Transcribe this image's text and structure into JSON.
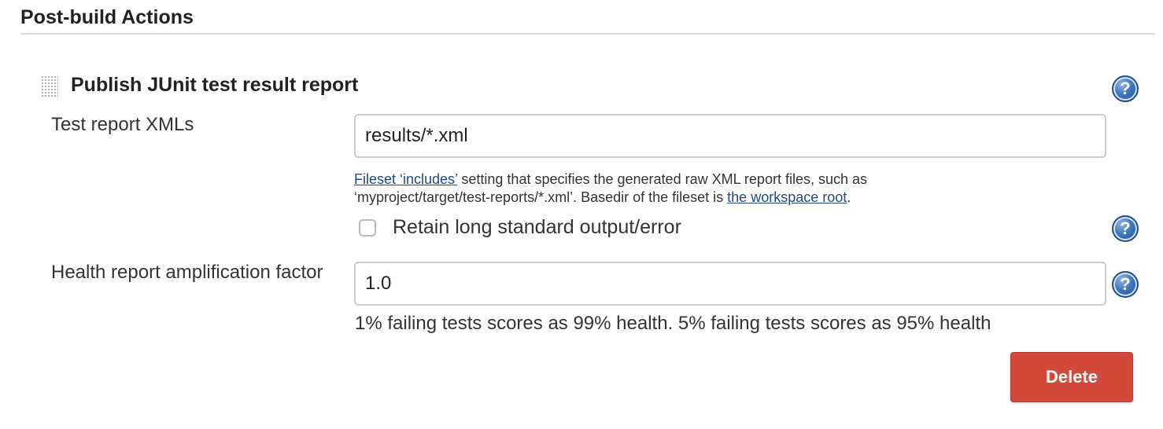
{
  "section": {
    "title": "Post-build Actions"
  },
  "step": {
    "title": "Publish JUnit test result report",
    "drag_icon": "drag-handle-icon",
    "help_icon": "help-icon"
  },
  "test_report": {
    "label": "Test report XMLs",
    "value": "results/*.xml",
    "description": {
      "link1": "Fileset ‘includes’",
      "text1": " setting that specifies the generated raw XML report files, such as",
      "text2": "‘myproject/target/test-reports/*.xml’. Basedir of the fileset is ",
      "link2": "the workspace root",
      "text3": "."
    }
  },
  "retain_output": {
    "label": "Retain long standard output/error",
    "checked": false
  },
  "health": {
    "label": "Health report amplification factor",
    "value": "1.0",
    "description": "1% failing tests scores as 99% health. 5% failing tests scores as 95% health"
  },
  "help_glyph": "?",
  "delete_label": "Delete",
  "colors": {
    "delete_bg": "#d24939",
    "link": "#204a87",
    "help_icon": "#3f77bf"
  }
}
